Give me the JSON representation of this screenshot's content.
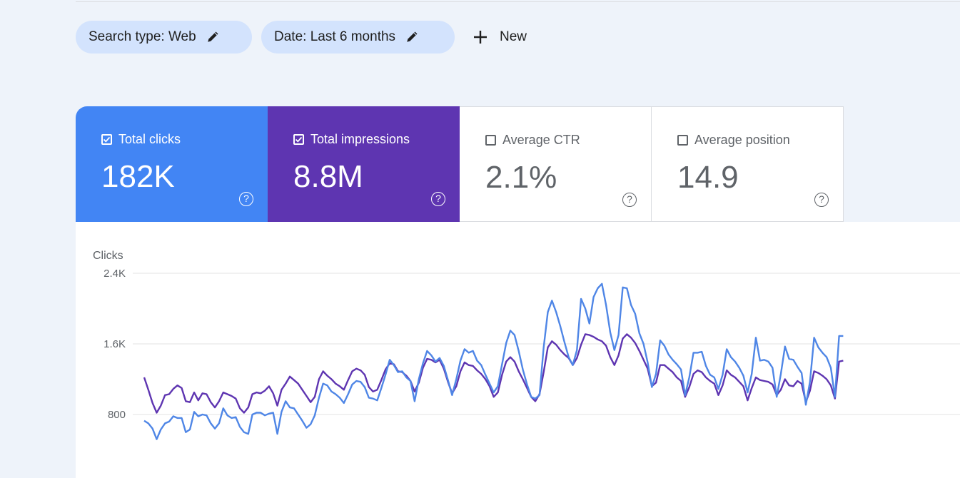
{
  "filters": {
    "search_type": "Search type: Web",
    "date": "Date: Last 6 months",
    "new_label": "New"
  },
  "metrics": [
    {
      "label": "Total clicks",
      "value": "182K",
      "checked": true,
      "color": "#4285f4"
    },
    {
      "label": "Total impressions",
      "value": "8.8M",
      "checked": true,
      "color": "#5e35b1"
    },
    {
      "label": "Average CTR",
      "value": "2.1%",
      "checked": false
    },
    {
      "label": "Average position",
      "value": "14.9",
      "checked": false
    }
  ],
  "help_glyph": "?",
  "chart_data": {
    "type": "line",
    "ylabel": "Clicks",
    "ylim": [
      0,
      2400
    ],
    "yticks": [
      {
        "value": 2400,
        "label": "2.4K"
      },
      {
        "value": 1600,
        "label": "1.6K"
      },
      {
        "value": 800,
        "label": "800"
      }
    ],
    "grid": true,
    "series": [
      {
        "name": "Total clicks",
        "color": "#4f86e6",
        "values": [
          730,
          700,
          640,
          520,
          630,
          700,
          720,
          780,
          760,
          760,
          600,
          630,
          830,
          780,
          800,
          790,
          700,
          640,
          700,
          870,
          790,
          760,
          770,
          660,
          600,
          580,
          800,
          820,
          820,
          790,
          810,
          820,
          580,
          830,
          950,
          880,
          870,
          800,
          730,
          650,
          690,
          790,
          990,
          1150,
          1130,
          1060,
          1030,
          990,
          930,
          1030,
          1140,
          1180,
          1170,
          1110,
          990,
          980,
          960,
          1100,
          1250,
          1420,
          1360,
          1280,
          1290,
          1220,
          1180,
          950,
          1200,
          1380,
          1520,
          1470,
          1400,
          1440,
          1350,
          1190,
          1020,
          1200,
          1410,
          1540,
          1500,
          1520,
          1410,
          1360,
          1250,
          1150,
          1050,
          1120,
          1370,
          1610,
          1750,
          1700,
          1520,
          1310,
          1140,
          1000,
          980,
          1020,
          1560,
          1960,
          2090,
          1960,
          1800,
          1620,
          1450,
          1360,
          1530,
          2110,
          2000,
          1830,
          2130,
          2230,
          2280,
          2040,
          1730,
          1530,
          1700,
          2240,
          2230,
          2040,
          1940,
          1720,
          1600,
          1390,
          1110,
          1260,
          1640,
          1580,
          1480,
          1420,
          1370,
          1310,
          1020,
          1220,
          1500,
          1500,
          1510,
          1350,
          1250,
          1220,
          1090,
          1250,
          1540,
          1450,
          1400,
          1330,
          1240,
          1050,
          1260,
          1670,
          1410,
          1420,
          1400,
          1330,
          1000,
          1260,
          1570,
          1430,
          1420,
          1340,
          1270,
          910,
          1170,
          1670,
          1560,
          1500,
          1450,
          1330,
          1000,
          1690,
          1690
        ]
      },
      {
        "name": "Total impressions",
        "color": "#5e35b1",
        "values": [
          1220,
          1080,
          930,
          820,
          900,
          1020,
          1030,
          1090,
          1130,
          1100,
          950,
          940,
          1050,
          960,
          1040,
          1030,
          940,
          880,
          950,
          1050,
          1030,
          1010,
          980,
          870,
          820,
          880,
          1030,
          1050,
          1040,
          1070,
          1120,
          1040,
          900,
          1080,
          1150,
          1230,
          1190,
          1150,
          1080,
          1010,
          940,
          1000,
          1200,
          1290,
          1240,
          1200,
          1150,
          1120,
          1080,
          1190,
          1290,
          1320,
          1300,
          1250,
          1110,
          1060,
          1080,
          1190,
          1310,
          1380,
          1370,
          1290,
          1280,
          1240,
          1180,
          1060,
          1160,
          1330,
          1430,
          1420,
          1390,
          1420,
          1320,
          1170,
          1040,
          1120,
          1290,
          1390,
          1360,
          1350,
          1300,
          1260,
          1200,
          1120,
          1000,
          1050,
          1250,
          1400,
          1450,
          1400,
          1290,
          1200,
          1100,
          1000,
          950,
          1030,
          1280,
          1560,
          1630,
          1590,
          1530,
          1480,
          1440,
          1360,
          1440,
          1590,
          1710,
          1700,
          1680,
          1650,
          1630,
          1580,
          1450,
          1360,
          1470,
          1660,
          1710,
          1670,
          1610,
          1520,
          1420,
          1320,
          1120,
          1160,
          1360,
          1360,
          1320,
          1280,
          1220,
          1180,
          1000,
          1110,
          1260,
          1300,
          1280,
          1220,
          1180,
          1150,
          1020,
          1130,
          1300,
          1250,
          1220,
          1170,
          1120,
          960,
          1100,
          1220,
          1190,
          1180,
          1170,
          1140,
          1020,
          1080,
          1200,
          1130,
          1120,
          1180,
          1150,
          940,
          1070,
          1290,
          1270,
          1240,
          1200,
          1130,
          980,
          1400,
          1410
        ]
      }
    ]
  }
}
